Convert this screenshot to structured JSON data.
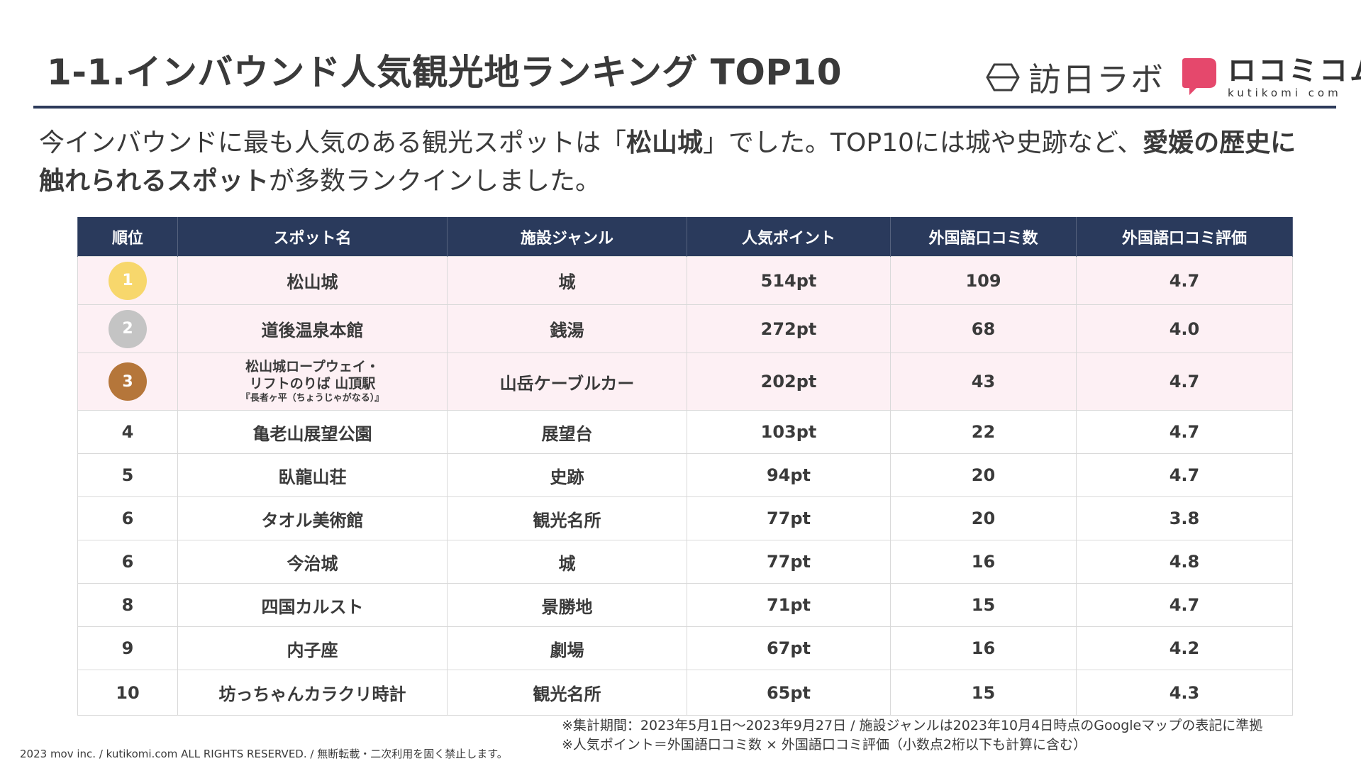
{
  "header": {
    "title": "1-1.インバウンド人気観光地ランキング TOP10"
  },
  "logos": {
    "houjitsu_text": "訪日ラボ",
    "kutikomi_ja": "ロコミコム",
    "kutikomi_en": "kutikomi com",
    "kutikomi_color": "#e5486c"
  },
  "lead": {
    "t1": "今インバウンドに最も人気のある観光スポットは「",
    "b1": "松山城",
    "t2": "」でした。TOP10には城や史跡など、",
    "b2": "愛媛の歴史に触れられるスポット",
    "t3": "が多数ランクインしました。"
  },
  "table": {
    "headers": [
      "順位",
      "スポット名",
      "施設ジャンル",
      "人気ポイント",
      "外国語口コミ数",
      "外国語口コミ評価"
    ],
    "rows": [
      {
        "rank": "1",
        "name": "松山城",
        "genre": "城",
        "points": "514pt",
        "reviews": "109",
        "rating": "4.7"
      },
      {
        "rank": "2",
        "name": "道後温泉本館",
        "genre": "銭湯",
        "points": "272pt",
        "reviews": "68",
        "rating": "4.0"
      },
      {
        "rank": "3",
        "name_l1": "松山城ロープウェイ・",
        "name_l2": "リフトのりば 山頂駅",
        "name_l3": "『長者ヶ平（ちょうじゃがなる）』",
        "genre": "山岳ケーブルカー",
        "points": "202pt",
        "reviews": "43",
        "rating": "4.7"
      },
      {
        "rank": "4",
        "name": "亀老山展望公園",
        "genre": "展望台",
        "points": "103pt",
        "reviews": "22",
        "rating": "4.7"
      },
      {
        "rank": "5",
        "name": "臥龍山荘",
        "genre": "史跡",
        "points": "94pt",
        "reviews": "20",
        "rating": "4.7"
      },
      {
        "rank": "6",
        "name": "タオル美術館",
        "genre": "観光名所",
        "points": "77pt",
        "reviews": "20",
        "rating": "3.8"
      },
      {
        "rank": "6",
        "name": "今治城",
        "genre": "城",
        "points": "77pt",
        "reviews": "16",
        "rating": "4.8"
      },
      {
        "rank": "8",
        "name": "四国カルスト",
        "genre": "景勝地",
        "points": "71pt",
        "reviews": "15",
        "rating": "4.7"
      },
      {
        "rank": "9",
        "name": "内子座",
        "genre": "劇場",
        "points": "67pt",
        "reviews": "16",
        "rating": "4.2"
      },
      {
        "rank": "10",
        "name": "坊っちゃんカラクリ時計",
        "genre": "観光名所",
        "points": "65pt",
        "reviews": "15",
        "rating": "4.3"
      }
    ],
    "medal_colors": [
      "#f7d76c",
      "#c4c4c4",
      "#b5763a"
    ]
  },
  "footer": {
    "note1": "※集計期間：2023年5月1日～2023年9月27日 / 施設ジャンルは2023年10月4日時点のGoogleマップの表記に準拠",
    "note2": "※人気ポイント＝外国語口コミ数 × 外国語口コミ評価（小数点2桁以下も計算に含む）",
    "copyright": "2023 mov inc. / kutikomi.com ALL RIGHTS RESERVED. / 無断転載・二次利用を固く禁止します。"
  }
}
